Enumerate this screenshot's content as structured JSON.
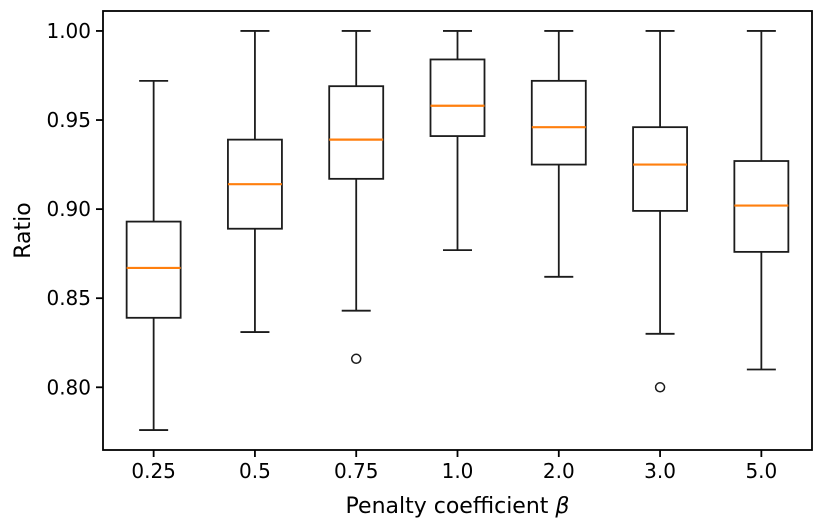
{
  "figure": {
    "background": "#ffffff",
    "axis_color": "#000000",
    "box_edge_color": "#1c1c1c",
    "median_color": "#ff7f0e",
    "outlier_edge_color": "#1c1c1c"
  },
  "chart_data": {
    "type": "box",
    "title": "",
    "xlabel": "Penalty coefficient β",
    "xlabel_parts": [
      {
        "text": "Penalty coefficient ",
        "italic": false
      },
      {
        "text": "β",
        "italic": true
      }
    ],
    "ylabel": "Ratio",
    "categories": [
      "0.25",
      "0.5",
      "0.75",
      "1.0",
      "2.0",
      "3.0",
      "5.0"
    ],
    "boxes": [
      {
        "category": "0.25",
        "whisker_low": 0.776,
        "q1": 0.839,
        "median": 0.867,
        "q3": 0.893,
        "whisker_high": 0.972,
        "outliers": []
      },
      {
        "category": "0.5",
        "whisker_low": 0.831,
        "q1": 0.889,
        "median": 0.914,
        "q3": 0.939,
        "whisker_high": 1.0,
        "outliers": []
      },
      {
        "category": "0.75",
        "whisker_low": 0.843,
        "q1": 0.917,
        "median": 0.939,
        "q3": 0.969,
        "whisker_high": 1.0,
        "outliers": [
          0.816
        ]
      },
      {
        "category": "1.0",
        "whisker_low": 0.877,
        "q1": 0.941,
        "median": 0.958,
        "q3": 0.984,
        "whisker_high": 1.0,
        "outliers": []
      },
      {
        "category": "2.0",
        "whisker_low": 0.862,
        "q1": 0.925,
        "median": 0.946,
        "q3": 0.972,
        "whisker_high": 1.0,
        "outliers": []
      },
      {
        "category": "3.0",
        "whisker_low": 0.83,
        "q1": 0.899,
        "median": 0.925,
        "q3": 0.946,
        "whisker_high": 1.0,
        "outliers": [
          0.8
        ]
      },
      {
        "category": "5.0",
        "whisker_low": 0.81,
        "q1": 0.876,
        "median": 0.902,
        "q3": 0.927,
        "whisker_high": 1.0,
        "outliers": []
      }
    ],
    "yticks": [
      0.8,
      0.85,
      0.9,
      0.95,
      1.0
    ],
    "ytick_labels": [
      "0.80",
      "0.85",
      "0.90",
      "0.95",
      "1.00"
    ],
    "ylim": [
      0.7648,
      1.0112
    ],
    "grid": false,
    "legend": null
  }
}
